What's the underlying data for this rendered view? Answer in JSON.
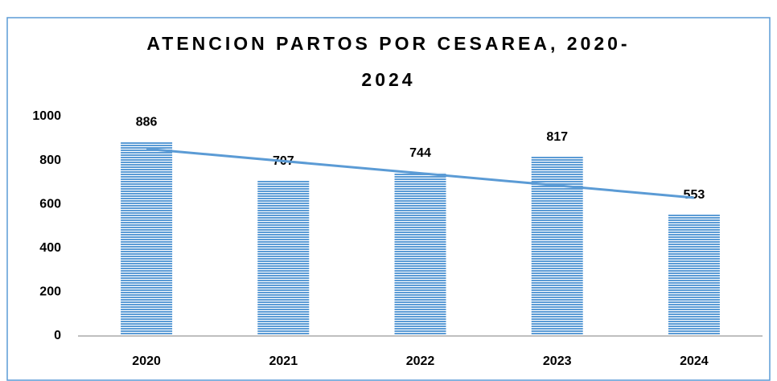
{
  "chart_data": {
    "type": "bar",
    "title": "ATENCION PARTOS POR CESAREA, 2020-2024",
    "categories": [
      "2020",
      "2021",
      "2022",
      "2023",
      "2024"
    ],
    "values": [
      886,
      707,
      744,
      817,
      553
    ],
    "color": "#5b9bd5",
    "ylim": [
      0,
      1000
    ],
    "yticks": [
      0,
      200,
      400,
      600,
      800,
      1000
    ],
    "grid": false,
    "trendline": true,
    "trendline_color": "#5b9bd5"
  }
}
